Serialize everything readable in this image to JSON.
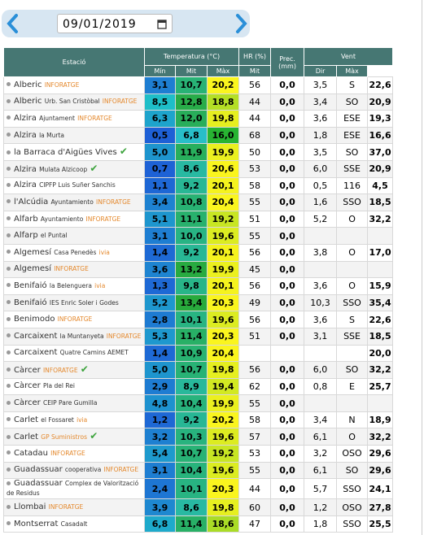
{
  "header": {
    "date": "09/01/2019"
  },
  "table": {
    "columns": {
      "station": "Estació",
      "temperature": "Temperatura (°C)",
      "humidity": "HR (%)",
      "precipitation": "Prec. (mm)",
      "wind": "Vent"
    },
    "subcolumns": [
      "Mín",
      "Mit",
      "Màx",
      "Mit",
      "Mit",
      "Dir",
      "Màx"
    ],
    "rows": [
      {
        "town": "Alberic",
        "tag": "INFORATGE",
        "min": "3,1",
        "mit": "10,7",
        "max": "20,2",
        "hr": "56",
        "prec": "0,0",
        "wind_mit": "3,5",
        "wind_dir": "S",
        "wind_max": "22,6"
      },
      {
        "town": "Alberic",
        "place": "Urb. San Cristòbal",
        "tag": "INFORATGE",
        "min": "8,5",
        "mit": "12,8",
        "max": "18,8",
        "hr": "44",
        "prec": "0,0",
        "wind_mit": "3,4",
        "wind_dir": "SO",
        "wind_max": "20,9"
      },
      {
        "town": "Alzira",
        "place": "Ajuntament",
        "tag": "INFORATGE",
        "min": "6,3",
        "mit": "12,0",
        "max": "19,8",
        "hr": "44",
        "prec": "0,0",
        "wind_mit": "3,6",
        "wind_dir": "ESE",
        "wind_max": "19,3"
      },
      {
        "town": "Alzira",
        "place": "la Murta",
        "min": "0,5",
        "mit": "6,8",
        "max": "16,0",
        "hr": "68",
        "prec": "0,0",
        "wind_mit": "1,8",
        "wind_dir": "ESE",
        "wind_max": "16,6"
      },
      {
        "town": "la Barraca d'Aigües Vives",
        "verified": true,
        "min": "5,0",
        "mit": "11,9",
        "max": "19,9",
        "hr": "50",
        "prec": "0,0",
        "wind_mit": "3,5",
        "wind_dir": "SO",
        "wind_max": "37,0"
      },
      {
        "town": "Alzira",
        "place": "Mulata Alzicoop",
        "verified": true,
        "min": "0,7",
        "mit": "8,6",
        "max": "20,6",
        "hr": "53",
        "prec": "0,0",
        "wind_mit": "6,0",
        "wind_dir": "SSE",
        "wind_max": "20,9"
      },
      {
        "town": "Alzira",
        "place": "CIPFP Luis Suñer Sanchis",
        "min": "1,1",
        "mit": "9,2",
        "max": "20,1",
        "hr": "58",
        "prec": "0,0",
        "wind_mit": "0,5",
        "wind_dir": "116",
        "wind_max": "4,5"
      },
      {
        "town": "l'Alcúdia",
        "place": "Ayuntamiento",
        "tag": "INFORATGE",
        "min": "3,4",
        "mit": "10,8",
        "max": "20,4",
        "hr": "55",
        "prec": "0,0",
        "wind_mit": "1,6",
        "wind_dir": "SSO",
        "wind_max": "18,5"
      },
      {
        "town": "Alfarb",
        "place": "Ayuntamiento",
        "tag": "INFORATGE",
        "min": "5,1",
        "mit": "11,1",
        "max": "19,2",
        "hr": "51",
        "prec": "0,0",
        "wind_mit": "5,2",
        "wind_dir": "O",
        "wind_max": "32,2"
      },
      {
        "town": "Alfarp",
        "place": "el Puntal",
        "min": "3,1",
        "mit": "10,0",
        "max": "19,6",
        "hr": "55",
        "prec": "0,0"
      },
      {
        "town": "Algemesí",
        "place": "Casa Penedès",
        "tag": "ivia",
        "min": "1,4",
        "mit": "9,2",
        "max": "20,1",
        "hr": "56",
        "prec": "0,0",
        "wind_mit": "3,8",
        "wind_dir": "O",
        "wind_max": "17,0"
      },
      {
        "town": "Algemesí",
        "tag": "INFORATGE",
        "min": "3,6",
        "mit": "13,2",
        "max": "19,9",
        "hr": "45",
        "prec": "0,0"
      },
      {
        "town": "Benifaió",
        "place": "la Belenguera",
        "tag": "ivia",
        "min": "1,3",
        "mit": "9,8",
        "max": "20,1",
        "hr": "56",
        "prec": "0,0",
        "wind_mit": "3,6",
        "wind_dir": "O",
        "wind_max": "15,9"
      },
      {
        "town": "Benifaió",
        "place": "IES Enric Soler i Godes",
        "min": "5,2",
        "mit": "13,4",
        "max": "20,3",
        "hr": "49",
        "prec": "0,0",
        "wind_mit": "10,3",
        "wind_dir": "SSO",
        "wind_max": "35,4"
      },
      {
        "town": "Benimodo",
        "tag": "INFORATGE",
        "min": "2,8",
        "mit": "10,1",
        "max": "19,6",
        "hr": "56",
        "prec": "0,0",
        "wind_mit": "3,6",
        "wind_dir": "S",
        "wind_max": "22,6"
      },
      {
        "town": "Carcaixent",
        "place": "la Muntanyeta",
        "tag": "INFORATGE",
        "min": "5,3",
        "mit": "11,4",
        "max": "20,3",
        "hr": "51",
        "prec": "0,0",
        "wind_mit": "3,1",
        "wind_dir": "SSE",
        "wind_max": "18,5"
      },
      {
        "town": "Carcaixent",
        "place": "Quatre Camins AEMET",
        "min": "1,4",
        "mit": "10,9",
        "max": "20,4",
        "wind_max": "20,0"
      },
      {
        "town": "Càrcer",
        "tag": "INFORATGE",
        "verified": true,
        "min": "5,0",
        "mit": "10,7",
        "max": "19,8",
        "hr": "56",
        "prec": "0,0",
        "wind_mit": "6,0",
        "wind_dir": "SO",
        "wind_max": "32,2"
      },
      {
        "town": "Càrcer",
        "place": "Pla del Rei",
        "min": "2,9",
        "mit": "8,9",
        "max": "19,4",
        "hr": "62",
        "prec": "0,0",
        "wind_mit": "0,8",
        "wind_dir": "E",
        "wind_max": "25,7"
      },
      {
        "town": "Càrcer",
        "place": "CEIP Pare Gumilla",
        "min": "4,8",
        "mit": "10,4",
        "max": "19,9",
        "hr": "55",
        "prec": "0,0"
      },
      {
        "town": "Carlet",
        "place": "el Fossaret",
        "tag": "ivia",
        "min": "1,2",
        "mit": "9,2",
        "max": "20,2",
        "hr": "58",
        "prec": "0,0",
        "wind_mit": "3,4",
        "wind_dir": "N",
        "wind_max": "18,9"
      },
      {
        "town": "Carlet",
        "tag": "GP Suministros",
        "verified": true,
        "min": "3,2",
        "mit": "10,3",
        "max": "19,6",
        "hr": "57",
        "prec": "0,0",
        "wind_mit": "6,1",
        "wind_dir": "O",
        "wind_max": "32,2"
      },
      {
        "town": "Catadau",
        "tag": "INFORATGE",
        "min": "5,4",
        "mit": "10,7",
        "max": "19,2",
        "hr": "53",
        "prec": "0,0",
        "wind_mit": "3,2",
        "wind_dir": "OSO",
        "wind_max": "29,6"
      },
      {
        "town": "Guadassuar",
        "place": "cooperativa",
        "tag": "INFORATGE",
        "min": "3,1",
        "mit": "10,4",
        "max": "19,6",
        "hr": "55",
        "prec": "0,0",
        "wind_mit": "6,1",
        "wind_dir": "SO",
        "wind_max": "29,6"
      },
      {
        "town": "Guadassuar",
        "place": "Complex de Valorització de Residus",
        "min": "2,4",
        "mit": "10,1",
        "max": "20,3",
        "hr": "44",
        "prec": "0,0",
        "wind_mit": "5,7",
        "wind_dir": "SSO",
        "wind_max": "24,1"
      },
      {
        "town": "Llombai",
        "tag": "INFORATGE",
        "min": "3,9",
        "mit": "8,6",
        "max": "19,8",
        "hr": "60",
        "prec": "0,0",
        "wind_mit": "1,2",
        "wind_dir": "OSO",
        "wind_max": "27,8"
      },
      {
        "town": "Montserrat",
        "place": "Casadalt",
        "min": "6,8",
        "mit": "11,4",
        "max": "18,6",
        "hr": "47",
        "prec": "0,0",
        "wind_mit": "1,8",
        "wind_dir": "SSO",
        "wind_max": "25,5"
      }
    ]
  }
}
